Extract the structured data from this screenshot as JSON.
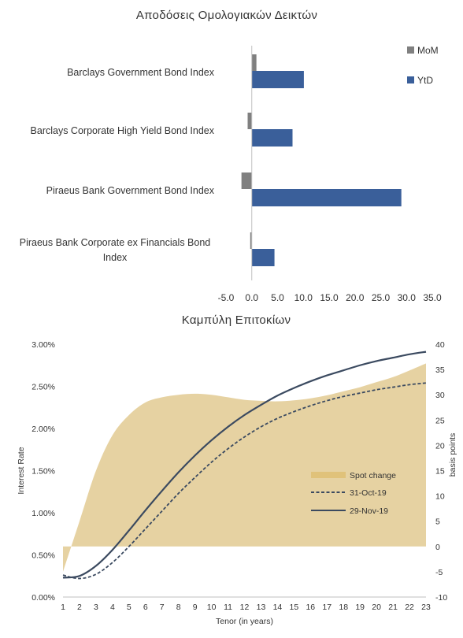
{
  "chart_data": [
    {
      "type": "bar",
      "title": "Αποδόσεις Ομολογιακών Δεικτών",
      "orientation": "horizontal",
      "categories": [
        "Barclays Government Bond Index",
        "Barclays Corporate High Yield Bond Index",
        "Piraeus Bank Government Bond Index",
        "Piraeus Bank Corporate ex Financials Bond Index"
      ],
      "series": [
        {
          "name": "MoM",
          "color": "#808080",
          "values": [
            0.9,
            -0.8,
            -2.0,
            -0.3
          ]
        },
        {
          "name": "YtD",
          "color": "#3a5f9a",
          "values": [
            10.1,
            7.9,
            29.0,
            4.4
          ]
        }
      ],
      "xlim": [
        -5,
        35
      ],
      "xticks": [
        "-5.0",
        "0.0",
        "5.0",
        "10.0",
        "15.0",
        "20.0",
        "25.0",
        "30.0",
        "35.0"
      ],
      "grid": false,
      "legend": "top-right"
    },
    {
      "type": "line",
      "title": "Καμπύλη Επιτοκίων",
      "xlabel": "Tenor (in years)",
      "ylabel": "Interest Rate",
      "y2label": "basis points",
      "x": [
        1,
        2,
        3,
        4,
        5,
        6,
        7,
        8,
        9,
        10,
        11,
        12,
        13,
        14,
        15,
        16,
        17,
        18,
        19,
        20,
        21,
        22,
        23
      ],
      "xticks": [
        "1",
        "2",
        "3",
        "4",
        "5",
        "6",
        "7",
        "8",
        "9",
        "10",
        "11",
        "12",
        "13",
        "14",
        "15",
        "16",
        "17",
        "18",
        "19",
        "20",
        "21",
        "22",
        "23"
      ],
      "ylim": [
        0,
        3
      ],
      "yticks": [
        "0.00%",
        "0.50%",
        "1.00%",
        "1.50%",
        "2.00%",
        "2.50%",
        "3.00%"
      ],
      "y2lim": [
        -10,
        40
      ],
      "y2ticks": [
        "-10",
        "-5",
        "0",
        "5",
        "10",
        "15",
        "20",
        "25",
        "30",
        "35",
        "40"
      ],
      "series": [
        {
          "name": "Spot change",
          "axis": "right",
          "kind": "area",
          "color": "#e6d2a2",
          "values": [
            -5,
            5,
            15,
            22,
            26,
            28.5,
            29.5,
            30.0,
            30.2,
            30.0,
            29.5,
            29.0,
            28.8,
            28.7,
            28.9,
            29.3,
            29.9,
            30.7,
            31.5,
            32.5,
            33.5,
            34.8,
            36.2
          ]
        },
        {
          "name": "31-Oct-19",
          "axis": "left",
          "kind": "dashed",
          "color": "#3b4a60",
          "values": [
            0.26,
            0.22,
            0.27,
            0.41,
            0.6,
            0.81,
            1.02,
            1.23,
            1.42,
            1.6,
            1.76,
            1.9,
            2.02,
            2.12,
            2.2,
            2.27,
            2.33,
            2.38,
            2.42,
            2.46,
            2.49,
            2.52,
            2.54
          ]
        },
        {
          "name": "29-Nov-19",
          "axis": "left",
          "kind": "solid",
          "color": "#3b4a60",
          "values": [
            0.23,
            0.25,
            0.37,
            0.56,
            0.79,
            1.03,
            1.26,
            1.48,
            1.68,
            1.86,
            2.02,
            2.16,
            2.28,
            2.39,
            2.48,
            2.56,
            2.63,
            2.69,
            2.75,
            2.8,
            2.84,
            2.88,
            2.91
          ]
        }
      ],
      "grid": false,
      "legend": "center-right"
    }
  ]
}
